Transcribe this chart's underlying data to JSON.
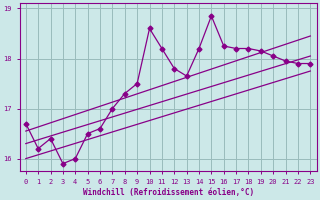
{
  "bg_color": "#cce8e8",
  "line_color": "#880088",
  "grid_color": "#99bbbb",
  "xlabel": "Windchill (Refroidissement éolien,°C)",
  "x_values": [
    0,
    1,
    2,
    3,
    4,
    5,
    6,
    7,
    8,
    9,
    10,
    11,
    12,
    13,
    14,
    15,
    16,
    17,
    18,
    19,
    20,
    21,
    22,
    23
  ],
  "series1": [
    16.7,
    16.2,
    16.4,
    15.9,
    16.0,
    16.5,
    16.6,
    17.0,
    17.3,
    17.5,
    18.6,
    18.2,
    17.8,
    17.65,
    18.2,
    18.85,
    18.25,
    18.2,
    18.2,
    18.15,
    18.05,
    17.95,
    17.9,
    17.9
  ],
  "line2_x": [
    0,
    23
  ],
  "line2_y": [
    16.55,
    18.45
  ],
  "line3_x": [
    0,
    23
  ],
  "line3_y": [
    16.0,
    17.75
  ],
  "line4_x": [
    0,
    23
  ],
  "line4_y": [
    16.3,
    18.05
  ],
  "ylim": [
    15.75,
    19.1
  ],
  "yticks": [
    16,
    17,
    18,
    19
  ],
  "xlim": [
    -0.5,
    23.5
  ],
  "xtick_labels": [
    "0",
    "1",
    "2",
    "3",
    "4",
    "5",
    "6",
    "7",
    "8",
    "9",
    "10",
    "11",
    "12",
    "13",
    "14",
    "15",
    "16",
    "17",
    "18",
    "19",
    "20",
    "21",
    "22",
    "23"
  ]
}
